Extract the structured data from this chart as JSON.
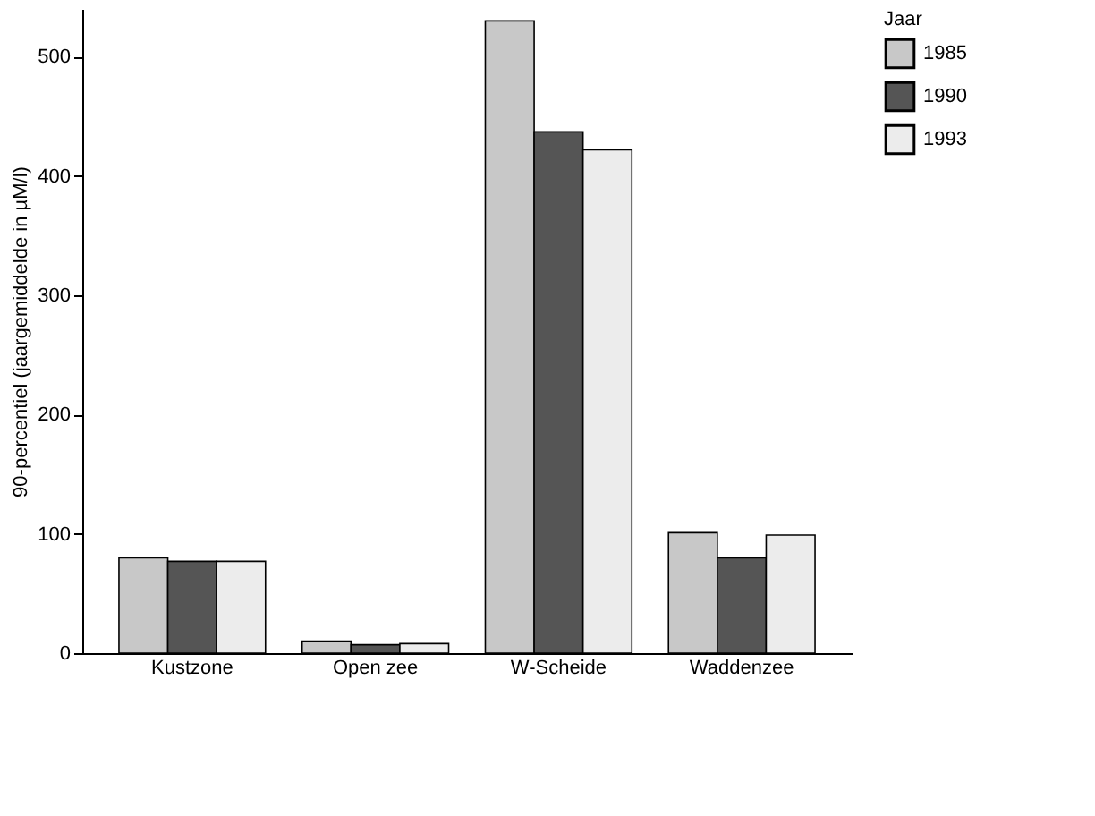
{
  "chart_data": {
    "type": "bar",
    "ylabel": "90-percentiel (jaargemiddelde in µM/l)",
    "legend_title": "Jaar",
    "categories": [
      "Kustzone",
      "Open zee",
      "W-Scheide",
      "Waddenzee"
    ],
    "series": [
      {
        "name": "1985",
        "color": "#c8c8c8",
        "values": [
          80,
          10,
          530,
          101
        ]
      },
      {
        "name": "1990",
        "color": "#555555",
        "values": [
          77,
          7,
          437,
          80
        ]
      },
      {
        "name": "1993",
        "color": "#ececec",
        "values": [
          77,
          8,
          422,
          99
        ]
      }
    ],
    "ylim": [
      0,
      540
    ],
    "yticks": [
      0,
      100,
      200,
      300,
      400,
      500
    ],
    "grid": false,
    "legend": "top right"
  }
}
